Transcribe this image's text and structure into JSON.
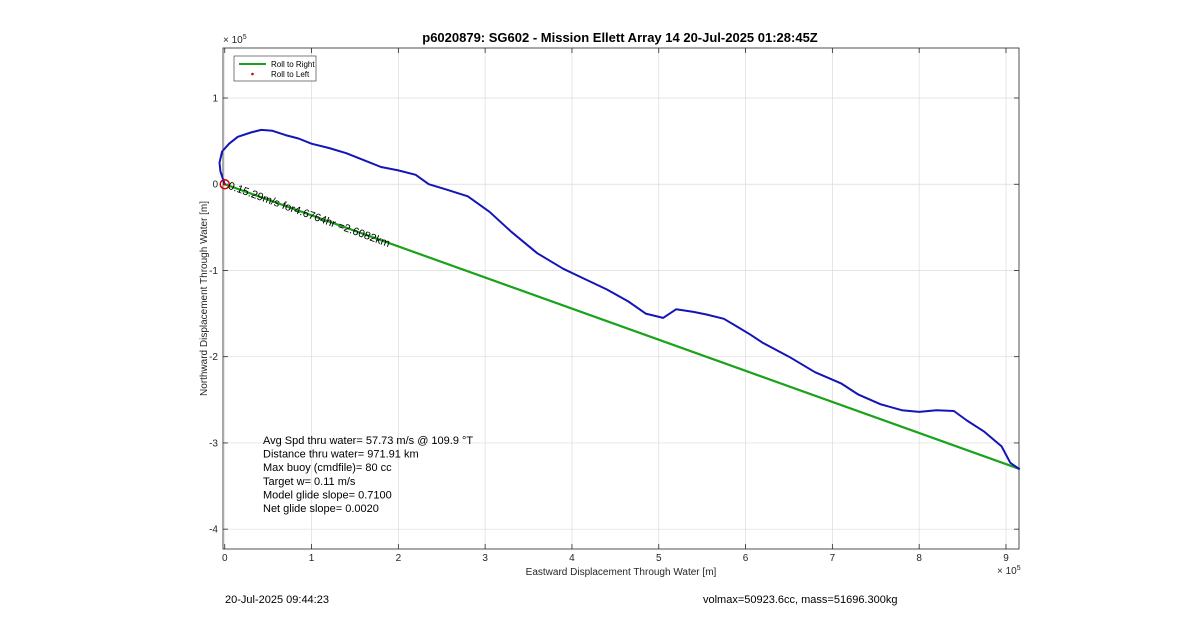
{
  "chart_data": {
    "type": "line",
    "title": "p6020879: SG602 - Mission Ellett Array 14 20-Jul-2025 01:28:45Z",
    "xlabel": "Eastward Displacement Through Water [m]",
    "ylabel": "Northward Displacement Through Water [m]",
    "x_exponent": "× 10",
    "x_exponent_power": "5",
    "y_exponent": "× 10",
    "y_exponent_power": "5",
    "xlim": [
      -0.02,
      9.15
    ],
    "ylim": [
      -4.23,
      1.58
    ],
    "x_ticks": [
      0,
      1,
      2,
      3,
      4,
      5,
      6,
      7,
      8,
      9
    ],
    "x_tick_labels": [
      "0",
      "1",
      "2",
      "3",
      "4",
      "5",
      "6",
      "7",
      "8",
      "9"
    ],
    "y_ticks": [
      -4,
      -3,
      -2,
      -1,
      0,
      1
    ],
    "y_tick_labels": [
      "-4",
      "-3",
      "-2",
      "-1",
      "0",
      "1"
    ],
    "grid": true,
    "legend_position": "top-left",
    "legend": [
      {
        "label": "Roll to Right",
        "color": "#1aa31a",
        "style": "line"
      },
      {
        "label": "Roll to Left",
        "color": "#cc0000",
        "style": "marker"
      }
    ],
    "series": [
      {
        "name": "Roll to Right",
        "color": "#1aa31a",
        "x": [
          0,
          9.15
        ],
        "y": [
          0,
          -3.3
        ]
      },
      {
        "color": "#1414b8",
        "x": [
          0,
          -0.05,
          -0.06,
          -0.03,
          0.05,
          0.15,
          0.3,
          0.42,
          0.55,
          0.7,
          0.85,
          1.0,
          1.2,
          1.4,
          1.6,
          1.8,
          2.0,
          2.2,
          2.35,
          2.55,
          2.8,
          3.05,
          3.3,
          3.6,
          3.9,
          4.15,
          4.4,
          4.65,
          4.85,
          5.05,
          5.2,
          5.4,
          5.55,
          5.75,
          5.9,
          6.05,
          6.2,
          6.5,
          6.8,
          7.1,
          7.3,
          7.55,
          7.8,
          8.0,
          8.2,
          8.4,
          8.55,
          8.75,
          8.95,
          9.05,
          9.15
        ],
        "y": [
          0,
          0.15,
          0.25,
          0.38,
          0.47,
          0.55,
          0.6,
          0.63,
          0.62,
          0.57,
          0.53,
          0.47,
          0.42,
          0.36,
          0.28,
          0.2,
          0.16,
          0.11,
          0.0,
          -0.06,
          -0.14,
          -0.32,
          -0.55,
          -0.8,
          -0.98,
          -1.1,
          -1.22,
          -1.36,
          -1.5,
          -1.55,
          -1.45,
          -1.48,
          -1.51,
          -1.56,
          -1.65,
          -1.74,
          -1.84,
          -2.0,
          -2.18,
          -2.31,
          -2.44,
          -2.55,
          -2.62,
          -2.64,
          -2.62,
          -2.63,
          -2.74,
          -2.87,
          -3.04,
          -3.23,
          -3.3
        ]
      }
    ],
    "roll_left_markers": {
      "color": "#cc0000",
      "x": [
        0,
        0,
        0,
        0
      ],
      "y": [
        0,
        0,
        0,
        0
      ]
    },
    "start_marker": {
      "x": 0,
      "y": 0,
      "color": "#cc0000"
    },
    "annotation": {
      "text": "0.15.29m/s for4.6764hr =2.6082km",
      "x": 0.03,
      "y": -0.05
    },
    "stats": [
      "Avg Spd thru water= 57.73 m/s @ 109.9 °T",
      "Distance thru water= 971.91 km",
      "Max buoy (cmdfile)= 80 cc",
      "Target w= 0.11 m/s",
      "Model glide slope= 0.7100",
      "Net glide slope= 0.0020"
    ]
  },
  "footer": {
    "left": "20-Jul-2025 09:44:23",
    "right": "volmax=50923.6cc, mass=51696.300kg"
  }
}
